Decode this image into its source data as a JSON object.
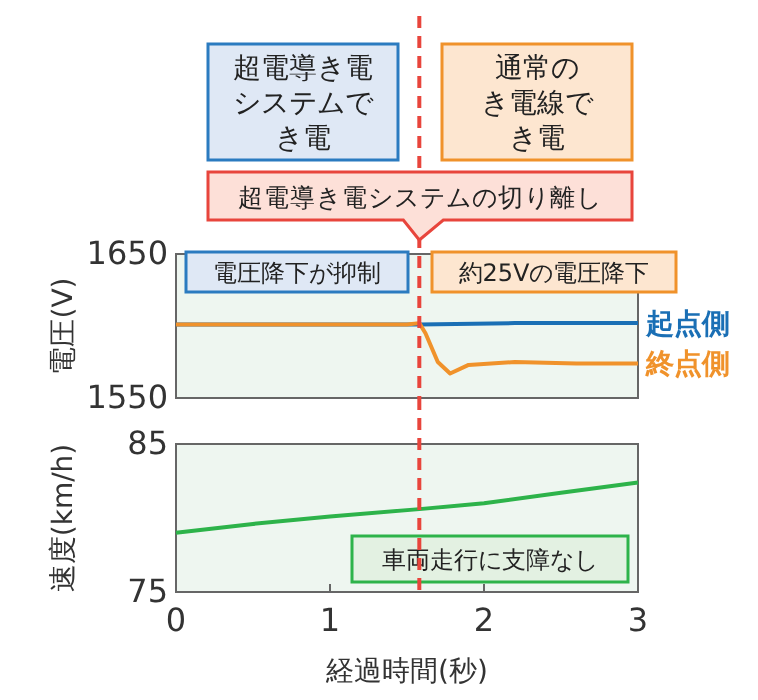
{
  "chart_data": [
    {
      "type": "line",
      "ylabel": "電圧(V)",
      "xlim": [
        0,
        3
      ],
      "ylim": [
        1550,
        1650
      ],
      "yticks": [
        1550,
        1650
      ],
      "tick_labels": "y",
      "series": [
        {
          "name": "起点側",
          "color": "#1a6fb5",
          "x": [
            0,
            1.58,
            2.2,
            3
          ],
          "values": [
            1601,
            1601,
            1602,
            1602
          ]
        },
        {
          "name": "終点側",
          "color": "#f0922b",
          "x": [
            0,
            0.5,
            1,
            1.5,
            1.58,
            1.62,
            1.7,
            1.78,
            1.9,
            2.2,
            2.6,
            3
          ],
          "values": [
            1601,
            1601,
            1601,
            1601,
            1602,
            1595,
            1575,
            1567,
            1573,
            1575,
            1574,
            1574
          ]
        }
      ],
      "ref_lines": [
        {
          "axis": "x",
          "value": 1.58,
          "label": "超電導き電システムの切り離し",
          "color": "#e8453c",
          "line_style": "dashed"
        }
      ],
      "annotations": [
        "超電導き電システムでき電",
        "通常のき電線でき電",
        "電圧降下が抑制",
        "約25Vの電圧降下"
      ]
    },
    {
      "type": "line",
      "xlabel": "経過時間(秒)",
      "ylabel": "速度(km/h)",
      "xlim": [
        0,
        3
      ],
      "xticks": [
        0,
        1,
        2,
        3
      ],
      "ylim": [
        75,
        85
      ],
      "yticks": [
        75,
        85
      ],
      "series": [
        {
          "color": "#2db34a",
          "x": [
            0,
            0.5,
            1,
            1.58,
            2,
            2.5,
            3
          ],
          "values": [
            79.0,
            79.6,
            80.1,
            80.6,
            81.0,
            81.7,
            82.4
          ]
        }
      ],
      "ref_lines": [
        {
          "axis": "x",
          "value": 1.58,
          "color": "#e8453c",
          "line_style": "dashed"
        }
      ],
      "annotations": [
        "車両走行に支障なし"
      ]
    }
  ]
}
